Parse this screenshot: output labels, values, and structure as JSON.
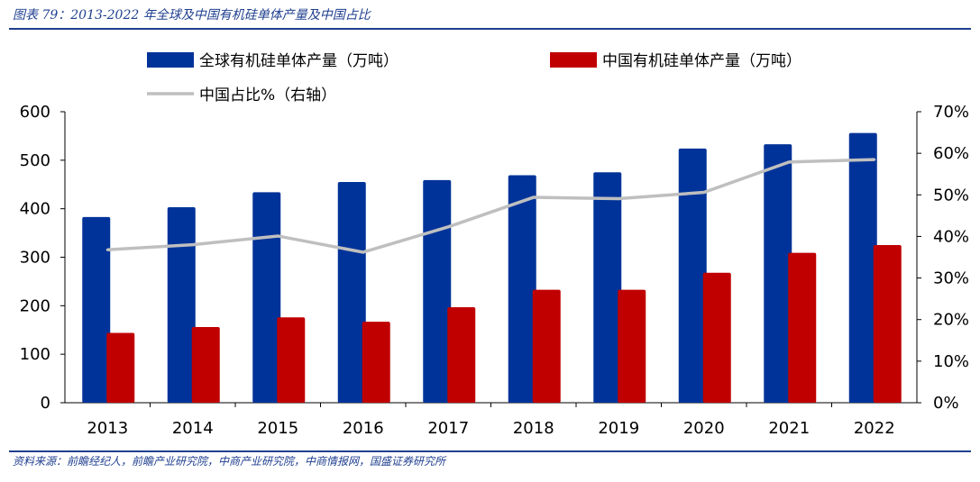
{
  "header": {
    "title": "图表 79：2013-2022 年全球及中国有机硅单体产量及中国占比"
  },
  "footer": {
    "source": "资料来源：前瞻经纪人，前瞻产业研究院，中商产业研究院，中商情报网，国盛证券研究所"
  },
  "colors": {
    "rule": "#1f3f8f",
    "global": "#003399",
    "china": "#c00000",
    "share": "#bfbfbf"
  },
  "chart_data": {
    "type": "bar",
    "categories": [
      "2013",
      "2014",
      "2015",
      "2016",
      "2017",
      "2018",
      "2019",
      "2020",
      "2021",
      "2022"
    ],
    "series": [
      {
        "name": "全球有机硅单体产量（万吨）",
        "kind": "bar",
        "axis": "left",
        "color": "#003399",
        "values": [
          383,
          403,
          434,
          455,
          459,
          469,
          475,
          524,
          533,
          556
        ]
      },
      {
        "name": "中国有机硅单体产量（万吨）",
        "kind": "bar",
        "axis": "left",
        "color": "#c00000",
        "values": [
          144,
          156,
          176,
          167,
          197,
          233,
          233,
          268,
          309,
          325
        ]
      },
      {
        "name": "中国占比%（右轴）",
        "kind": "line",
        "axis": "right",
        "color": "#bfbfbf",
        "values": [
          36.8,
          38.0,
          40.1,
          36.2,
          42.3,
          49.4,
          49.1,
          50.6,
          57.9,
          58.5
        ]
      }
    ],
    "y_left": {
      "ylim": [
        0,
        600
      ],
      "ticks": [
        "0",
        "100",
        "200",
        "300",
        "400",
        "500",
        "600"
      ]
    },
    "y_right": {
      "ylim": [
        0,
        70
      ],
      "ticks": [
        "0%",
        "10%",
        "20%",
        "30%",
        "40%",
        "50%",
        "60%",
        "70%"
      ]
    },
    "legend": {
      "placement": "top"
    },
    "grid": false
  }
}
